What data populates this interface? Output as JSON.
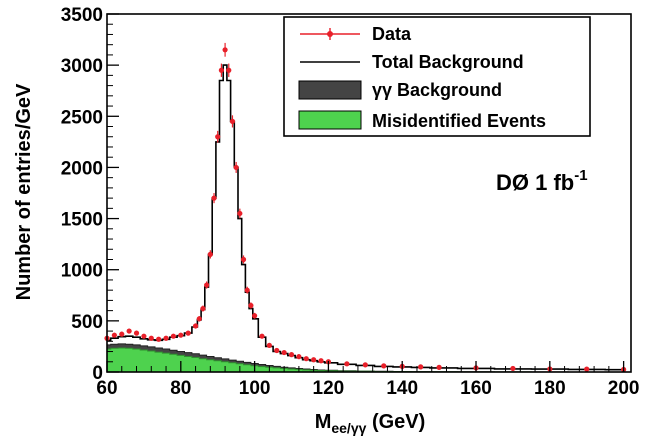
{
  "chart_data": {
    "type": "line",
    "xlabel_main": "M",
    "xlabel_sub": "ee/γγ",
    "xlabel_unit": " (GeV)",
    "ylabel": "Number of entries/GeV",
    "xlim": [
      60,
      202
    ],
    "ylim": [
      0,
      3500
    ],
    "x_ticks": [
      60,
      80,
      100,
      120,
      140,
      160,
      180,
      200
    ],
    "y_ticks": [
      0,
      500,
      1000,
      1500,
      2000,
      2500,
      3000,
      3500
    ],
    "annotation_main": "DØ 1 fb",
    "annotation_sup": "-1",
    "legend": {
      "placement": "top-right",
      "entries": [
        {
          "label": "Data",
          "color": "#e8202a"
        },
        {
          "label": "Total Background",
          "color": "#000000"
        },
        {
          "label": "γγ Background",
          "color": "#444444"
        },
        {
          "label": "Misidentified Events",
          "color": "#4ed24e"
        }
      ]
    },
    "series": [
      {
        "name": "Data",
        "color": "#e8202a",
        "x": [
          60,
          62,
          64,
          66,
          68,
          70,
          72,
          74,
          76,
          78,
          80,
          82,
          84,
          85,
          86,
          87,
          88,
          89,
          90,
          91,
          92,
          93,
          94,
          95,
          96,
          97,
          98,
          99,
          100,
          102,
          104,
          106,
          108,
          110,
          112,
          114,
          116,
          118,
          120,
          125,
          130,
          135,
          140,
          145,
          150,
          160,
          170,
          180,
          190,
          200
        ],
        "y": [
          330,
          360,
          370,
          400,
          380,
          350,
          330,
          320,
          330,
          350,
          360,
          380,
          450,
          520,
          620,
          850,
          1150,
          1700,
          2300,
          2950,
          3150,
          2950,
          2450,
          2000,
          1550,
          1100,
          800,
          650,
          550,
          350,
          260,
          210,
          190,
          170,
          150,
          130,
          120,
          110,
          100,
          80,
          70,
          60,
          55,
          50,
          45,
          40,
          35,
          30,
          28,
          25
        ]
      },
      {
        "name": "Total Background",
        "color": "#000000",
        "x": [
          60,
          62,
          64,
          66,
          68,
          70,
          72,
          74,
          76,
          78,
          80,
          82,
          84,
          85,
          86,
          87,
          88,
          89,
          90,
          91,
          92,
          93,
          94,
          95,
          96,
          97,
          98,
          99,
          100,
          102,
          104,
          106,
          108,
          110,
          112,
          114,
          116,
          118,
          120,
          125,
          130,
          135,
          140,
          145,
          150,
          160,
          170,
          180,
          190,
          200
        ],
        "y": [
          310,
          330,
          345,
          350,
          340,
          325,
          315,
          310,
          320,
          340,
          355,
          380,
          440,
          510,
          610,
          830,
          1150,
          1700,
          2250,
          2850,
          3000,
          2850,
          2450,
          2000,
          1500,
          1050,
          780,
          620,
          520,
          340,
          250,
          200,
          180,
          160,
          140,
          120,
          110,
          100,
          90,
          75,
          65,
          55,
          50,
          45,
          40,
          35,
          30,
          28,
          25,
          22
        ]
      },
      {
        "name": "γγ Background",
        "color": "#444444",
        "x": [
          60,
          62,
          64,
          66,
          68,
          70,
          72,
          74,
          76,
          78,
          80,
          82,
          84,
          86,
          88,
          90,
          92,
          94,
          96,
          98,
          100,
          102,
          104,
          106,
          108,
          110,
          112,
          114,
          116,
          118,
          120,
          125,
          130,
          135,
          140,
          145,
          150,
          160,
          170,
          180,
          190,
          200
        ],
        "y": [
          265,
          272,
          275,
          272,
          265,
          255,
          245,
          235,
          225,
          213,
          200,
          190,
          178,
          165,
          152,
          140,
          128,
          116,
          105,
          94,
          83,
          73,
          64,
          55,
          47,
          40,
          34,
          29,
          24,
          20,
          17,
          12,
          9,
          7,
          5,
          4,
          3,
          2,
          1,
          1,
          0,
          0
        ]
      },
      {
        "name": "Misidentified Events",
        "color": "#4ed24e",
        "x": [
          60,
          62,
          64,
          66,
          68,
          70,
          72,
          74,
          76,
          78,
          80,
          82,
          84,
          86,
          88,
          90,
          92,
          94,
          96,
          98,
          100,
          102,
          104,
          106,
          108,
          110,
          112,
          114,
          116,
          118,
          120,
          125,
          130,
          135,
          140,
          145,
          150,
          160,
          170,
          180,
          190,
          200
        ],
        "y": [
          225,
          232,
          235,
          232,
          225,
          215,
          205,
          195,
          185,
          174,
          162,
          152,
          142,
          130,
          120,
          110,
          100,
          90,
          80,
          70,
          61,
          53,
          46,
          40,
          34,
          29,
          25,
          21,
          18,
          15,
          12,
          9,
          7,
          5,
          4,
          3,
          2,
          1,
          1,
          0,
          0,
          0
        ]
      }
    ]
  }
}
